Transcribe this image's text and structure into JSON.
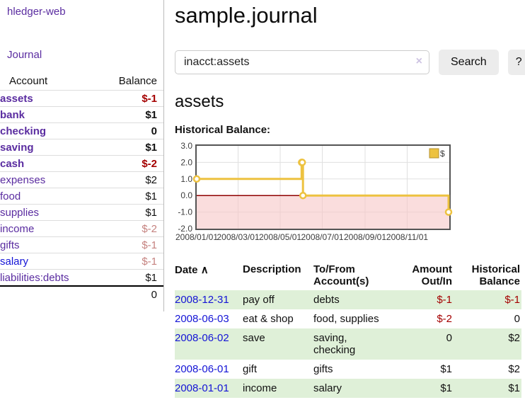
{
  "colors": {
    "purple": "#5a2ca0",
    "blue": "#1414d6",
    "neg": "#a40000",
    "neg_dim": "#c5827f",
    "green": "#dff0d8",
    "gold": "#edc240",
    "divider": "#bbbbbb"
  },
  "app": {
    "brand": "hledger-web",
    "nav_journal": "Journal"
  },
  "sidebar": {
    "header": {
      "account": "Account",
      "balance": "Balance"
    },
    "rows": [
      {
        "name": "assets",
        "balance": "$-1",
        "depth": 1,
        "bold": true,
        "negative": "strong"
      },
      {
        "name": "bank",
        "balance": "$1",
        "depth": 2,
        "bold": true
      },
      {
        "name": "checking",
        "balance": "0",
        "depth": 3,
        "bold": true
      },
      {
        "name": "saving",
        "balance": "$1",
        "depth": 3,
        "bold": true
      },
      {
        "name": "cash",
        "balance": "$-2",
        "depth": 2,
        "bold": true,
        "negative": "strong"
      },
      {
        "name": "expenses",
        "balance": "$2",
        "depth": 1
      },
      {
        "name": "food",
        "balance": "$1",
        "depth": 2
      },
      {
        "name": "supplies",
        "balance": "$1",
        "depth": 2
      },
      {
        "name": "income",
        "balance": "$-2",
        "depth": 1,
        "negative": "dim"
      },
      {
        "name": "gifts",
        "balance": "$-1",
        "depth": 2,
        "negative": "dim"
      },
      {
        "name": "salary",
        "balance": "$-1",
        "depth": 2,
        "negative": "dim",
        "link_style": "unvisited"
      },
      {
        "name": "liabilities:debts",
        "balance": "$1",
        "depth": 1
      }
    ],
    "total": "0"
  },
  "header": {
    "title": "sample.journal"
  },
  "search": {
    "value": "inacct:assets",
    "clear_icon": "×",
    "button_label": "Search",
    "help_label": "?"
  },
  "account_page": {
    "heading": "assets",
    "chart_title": "Historical Balance:"
  },
  "chart_data": {
    "type": "line",
    "step": true,
    "title": "Historical Balance:",
    "series": [
      {
        "name": "$",
        "color": "#edc240",
        "points": [
          [
            "2008-01-01",
            1
          ],
          [
            "2008-06-01",
            2
          ],
          [
            "2008-06-02",
            2
          ],
          [
            "2008-06-03",
            0
          ],
          [
            "2008-12-31",
            -1
          ]
        ]
      }
    ],
    "x_range": [
      "2008-01-01",
      "2009-01-01"
    ],
    "ylim": [
      -2,
      3
    ],
    "y_ticks": [
      3.0,
      2.0,
      1.0,
      0.0,
      -1.0,
      -2.0
    ],
    "x_ticks": [
      "2008/01/01",
      "2008/03/01",
      "2008/05/01",
      "2008/07/01",
      "2008/09/01",
      "2008/11/01"
    ],
    "legend_position": "top-right",
    "grid": true,
    "negative_region_color": "#f7c6c6",
    "zero_line_color": "#8f0000"
  },
  "register": {
    "columns": [
      "Date",
      "Description",
      "To/From Account(s)",
      "Amount Out/In",
      "Historical Balance"
    ],
    "sort_icon": "∧",
    "rows": [
      {
        "date": "2008-12-31",
        "description": "pay off",
        "accounts": "debts",
        "amount": "$-1",
        "balance": "$-1",
        "amount_negative": true,
        "balance_negative": true
      },
      {
        "date": "2008-06-03",
        "description": "eat & shop",
        "accounts": "food, supplies",
        "amount": "$-2",
        "balance": "0",
        "amount_negative": true,
        "balance_negative": false
      },
      {
        "date": "2008-06-02",
        "description": "save",
        "accounts": "saving, checking",
        "amount": "0",
        "balance": "$2",
        "amount_negative": false,
        "balance_negative": false
      },
      {
        "date": "2008-06-01",
        "description": "gift",
        "accounts": "gifts",
        "amount": "$1",
        "balance": "$2",
        "amount_negative": false,
        "balance_negative": false
      },
      {
        "date": "2008-01-01",
        "description": "income",
        "accounts": "salary",
        "amount": "$1",
        "balance": "$1",
        "amount_negative": false,
        "balance_negative": false
      }
    ]
  }
}
